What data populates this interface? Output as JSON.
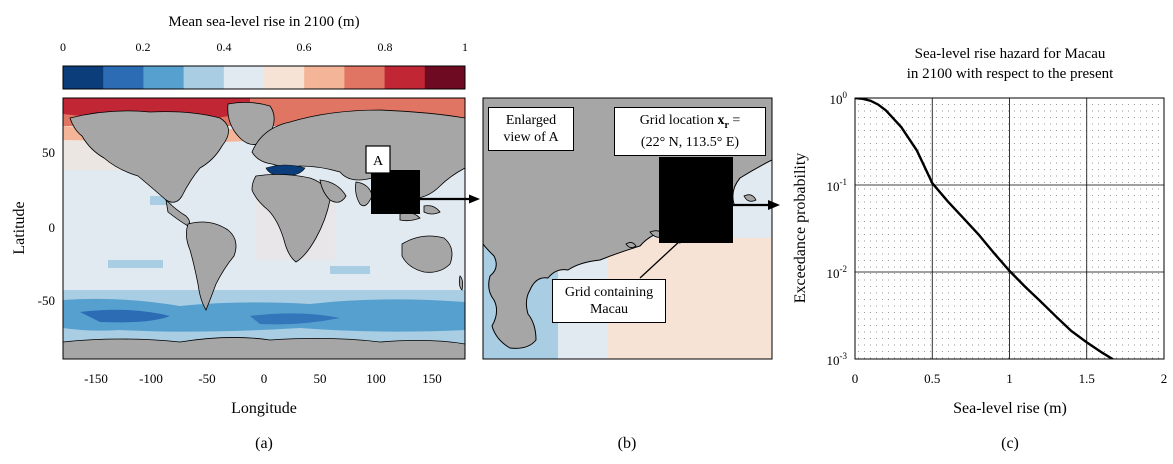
{
  "panel_a": {
    "colorbar_title": "Mean sea-level rise in 2100 (m)",
    "colorbar_ticks": [
      "0",
      "0.2",
      "0.4",
      "0.6",
      "0.8",
      "1"
    ],
    "colorbar_colors": [
      "#0b3d7a",
      "#2b6cb4",
      "#56a0cf",
      "#a9cde2",
      "#e1e9f1",
      "#f7e3d6",
      "#f4b497",
      "#e07563",
      "#c02633",
      "#6e0b22"
    ],
    "xlabel": "Longitude",
    "ylabel": "Latitude",
    "x_ticks": [
      "-150",
      "-100",
      "-50",
      "0",
      "50",
      "100",
      "150"
    ],
    "y_ticks": [
      "50",
      "0",
      "-50"
    ],
    "region_label": "A",
    "caption": "(a)"
  },
  "panel_b": {
    "enlarged_label_line1": "Enlarged",
    "enlarged_label_line2": "view of A",
    "grid_location_line1": "Grid location",
    "grid_location_symbol": "x",
    "grid_location_sub": "r",
    "grid_location_eq": " =",
    "grid_location_line2": "(22° N, 113.5° E)",
    "grid_containing_line1": "Grid containing",
    "grid_containing_line2": "Macau",
    "caption": "(b)"
  },
  "panel_c": {
    "caption": "(c)",
    "chart_data": {
      "type": "line",
      "title": "Sea-level rise hazard for Macau in 2100 with respect to the present",
      "title_line1": "Sea-level rise hazard for Macau",
      "title_line2": "in 2100 with respect to the present",
      "xlabel": "Sea-level rise (m)",
      "ylabel": "Exceedance probability",
      "xlim": [
        0,
        2
      ],
      "ylim": [
        0.001,
        1
      ],
      "yscale": "log",
      "x_ticks": [
        "0",
        "0.5",
        "1",
        "1.5",
        "2"
      ],
      "y_ticks": [
        {
          "base": "10",
          "exp": "0",
          "value": 1
        },
        {
          "base": "10",
          "exp": "-1",
          "value": 0.1
        },
        {
          "base": "10",
          "exp": "-2",
          "value": 0.01
        },
        {
          "base": "10",
          "exp": "-3",
          "value": 0.001
        }
      ],
      "grid": true,
      "series": [
        {
          "x": [
            0,
            0.05,
            0.1,
            0.15,
            0.2,
            0.3,
            0.4,
            0.5,
            0.6,
            0.7,
            0.8,
            0.9,
            1.0,
            1.1,
            1.2,
            1.3,
            1.4,
            1.5,
            1.6,
            1.7
          ],
          "y": [
            1,
            0.98,
            0.93,
            0.84,
            0.72,
            0.46,
            0.25,
            0.105,
            0.065,
            0.042,
            0.027,
            0.0165,
            0.0103,
            0.0068,
            0.0046,
            0.0031,
            0.0021,
            0.00155,
            0.00118,
            0.00092
          ]
        }
      ]
    }
  }
}
